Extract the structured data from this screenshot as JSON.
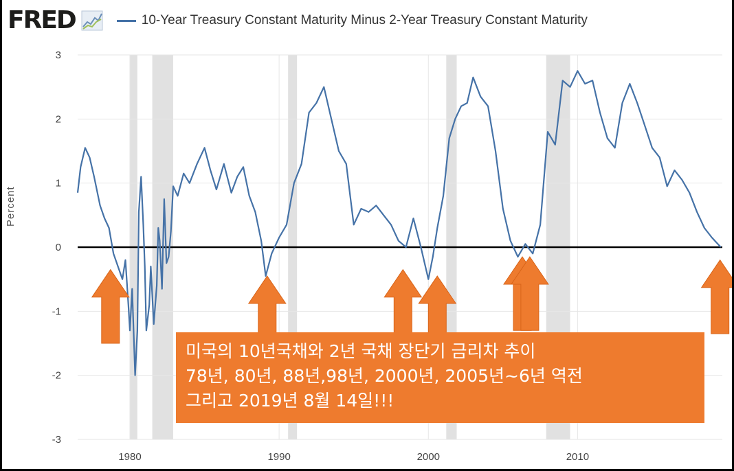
{
  "header": {
    "logo": "FRED",
    "legend_label": "10-Year Treasury Constant Maturity Minus 2-Year Treasury Constant Maturity",
    "legend_color": "#4572a7"
  },
  "chart_data": {
    "type": "line",
    "title": "10-Year Treasury Constant Maturity Minus 2-Year Treasury Constant Maturity",
    "ylabel": "Percent",
    "xlabel": "",
    "xlim": [
      1976.5,
      2019.7
    ],
    "ylim": [
      -3,
      3
    ],
    "x_ticks": [
      1980,
      1990,
      2000,
      2010
    ],
    "y_ticks": [
      3,
      2,
      1,
      0,
      -1,
      -2,
      -3
    ],
    "grid": true,
    "zero_line": true,
    "recessions": [
      [
        1980.0,
        1980.5
      ],
      [
        1981.5,
        1982.9
      ],
      [
        1990.6,
        1991.2
      ],
      [
        2001.2,
        2001.9
      ],
      [
        2007.9,
        2009.5
      ]
    ],
    "series": [
      {
        "color": "#4572a7",
        "x": [
          1976.5,
          1976.7,
          1977.0,
          1977.3,
          1977.6,
          1978.0,
          1978.3,
          1978.6,
          1978.9,
          1979.2,
          1979.5,
          1979.7,
          1979.9,
          1980.0,
          1980.15,
          1980.35,
          1980.5,
          1980.6,
          1980.75,
          1980.9,
          1981.0,
          1981.1,
          1981.3,
          1981.4,
          1981.6,
          1981.8,
          1981.9,
          1982.0,
          1982.15,
          1982.3,
          1982.45,
          1982.6,
          1982.75,
          1982.9,
          1983.2,
          1983.6,
          1984.0,
          1984.5,
          1985.0,
          1985.4,
          1985.8,
          1986.3,
          1986.8,
          1987.2,
          1987.6,
          1988.0,
          1988.4,
          1988.8,
          1989.1,
          1989.5,
          1990.0,
          1990.5,
          1991.0,
          1991.5,
          1992.0,
          1992.5,
          1993.0,
          1993.5,
          1994.0,
          1994.5,
          1995.0,
          1995.5,
          1996.0,
          1996.5,
          1997.0,
          1997.5,
          1998.0,
          1998.5,
          1999.0,
          1999.5,
          2000.0,
          2000.3,
          2000.6,
          2001.0,
          2001.4,
          2001.8,
          2002.2,
          2002.6,
          2003.0,
          2003.5,
          2004.0,
          2004.5,
          2005.0,
          2005.5,
          2006.0,
          2006.5,
          2007.0,
          2007.5,
          2008.0,
          2008.5,
          2009.0,
          2009.5,
          2010.0,
          2010.5,
          2011.0,
          2011.5,
          2012.0,
          2012.5,
          2013.0,
          2013.5,
          2014.0,
          2014.5,
          2015.0,
          2015.5,
          2016.0,
          2016.5,
          2017.0,
          2017.5,
          2018.0,
          2018.5,
          2019.0,
          2019.6
        ],
        "y": [
          0.85,
          1.25,
          1.55,
          1.4,
          1.1,
          0.65,
          0.45,
          0.3,
          -0.1,
          -0.3,
          -0.5,
          -0.2,
          -0.9,
          -1.3,
          -0.65,
          -2.0,
          -1.3,
          0.55,
          1.1,
          0.35,
          -0.3,
          -1.3,
          -0.9,
          -0.3,
          -1.2,
          -0.6,
          0.3,
          0.1,
          -0.65,
          0.75,
          -0.25,
          -0.15,
          0.25,
          0.95,
          0.8,
          1.15,
          1.0,
          1.3,
          1.55,
          1.2,
          0.9,
          1.3,
          0.85,
          1.1,
          1.25,
          0.8,
          0.55,
          0.1,
          -0.45,
          -0.1,
          0.15,
          0.35,
          1.0,
          1.3,
          2.1,
          2.25,
          2.5,
          2.0,
          1.5,
          1.3,
          0.35,
          0.6,
          0.55,
          0.65,
          0.5,
          0.35,
          0.1,
          0.0,
          0.45,
          0.0,
          -0.5,
          -0.15,
          0.3,
          0.8,
          1.7,
          2.0,
          2.2,
          2.25,
          2.65,
          2.35,
          2.2,
          1.5,
          0.6,
          0.1,
          -0.15,
          0.05,
          -0.1,
          0.35,
          1.8,
          1.6,
          2.6,
          2.5,
          2.75,
          2.55,
          2.6,
          2.1,
          1.7,
          1.55,
          2.25,
          2.55,
          2.25,
          1.9,
          1.55,
          1.4,
          0.95,
          1.2,
          1.05,
          0.85,
          0.55,
          0.3,
          0.15,
          0.0
        ]
      }
    ]
  },
  "annotations": {
    "arrow_color": "#ee7b2e",
    "caption_lines": [
      "미국의 10년국채와 2년 국채 장단기 금리차 추이",
      "78년, 80년, 88년,98년, 2000년, 2005년~6년 역전",
      "그리고 2019년 8월 14일!!!"
    ]
  }
}
